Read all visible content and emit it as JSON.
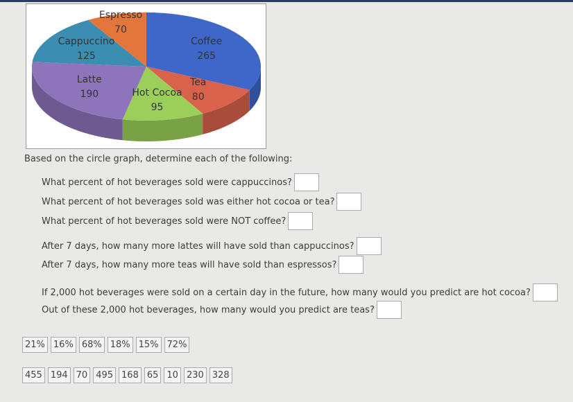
{
  "chart_data": {
    "type": "pie",
    "categories": [
      "Coffee",
      "Tea",
      "Hot Cocoa",
      "Latte",
      "Cappuccino",
      "Espresso"
    ],
    "values": [
      265,
      80,
      95,
      190,
      125,
      70
    ],
    "colors": [
      "#3f66c9",
      "#d9624c",
      "#9ccf5a",
      "#8e74ba",
      "#3b8db2",
      "#e2763c"
    ]
  },
  "instructions": "Based on the circle graph, determine each of the following:",
  "question_groups": [
    [
      "What percent of hot beverages sold were cappuccinos?",
      "What percent of hot beverages sold was either hot cocoa or tea?",
      "What percent of hot beverages sold were NOT coffee?"
    ],
    [
      "After 7 days, how many more lattes will have sold than cappuccinos?",
      "After 7 days, how many more teas will have sold than espressos?"
    ],
    [
      "If 2,000 hot beverages were sold on a certain day in the future, how many would you predict are hot cocoa?",
      "Out of these 2,000 hot beverages, how many would you predict are teas?"
    ]
  ],
  "answer_banks": [
    [
      "21%",
      "16%",
      "68%",
      "18%",
      "15%",
      "72%"
    ],
    [
      "455",
      "194",
      "70",
      "495",
      "168",
      "65",
      "10",
      "230",
      "328"
    ]
  ]
}
